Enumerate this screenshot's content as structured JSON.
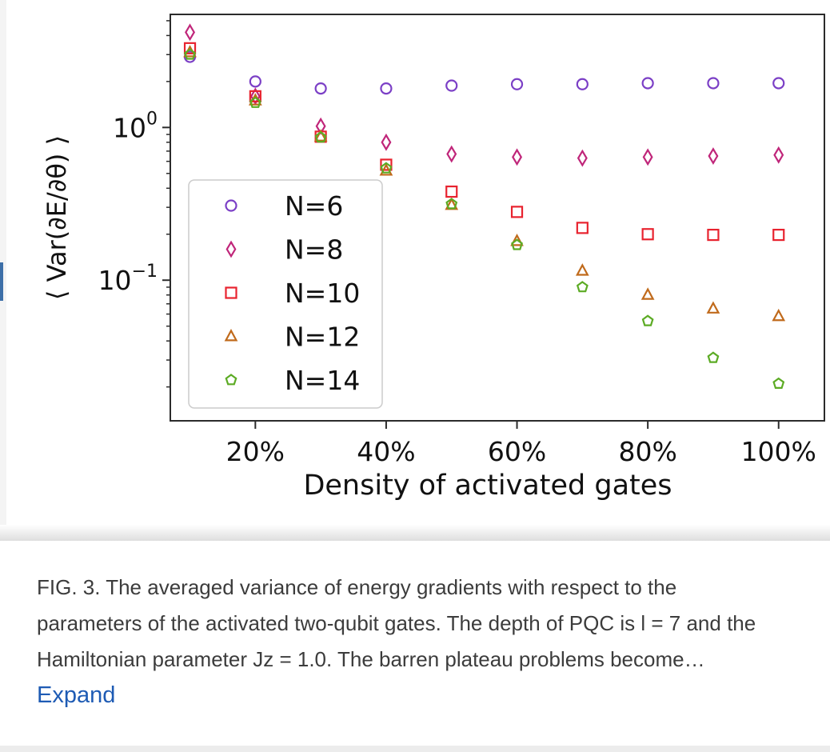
{
  "caption": {
    "text": "FIG. 3. The averaged variance of energy gradients with respect to the parameters of the activated two-qubit gates. The depth of PQC is l = 7 and the Hamiltonian parameter Jz = 1.0. The barren plateau problems become…",
    "expand_label": "Expand",
    "link_color": "#1e5bb4"
  },
  "chart_data": {
    "type": "scatter",
    "xlabel": "Density of activated gates",
    "ylabel": "⟨ Var(∂E/∂θ) ⟩",
    "x_ticks": [
      "20%",
      "40%",
      "60%",
      "80%",
      "100%"
    ],
    "x_tick_values": [
      20,
      40,
      60,
      80,
      100
    ],
    "y_ticks": [
      {
        "value": 1,
        "base": "10",
        "exp": "0"
      },
      {
        "value": 0.1,
        "base": "10",
        "exp": "−1"
      }
    ],
    "y_scale": "log",
    "xlim": [
      7,
      107
    ],
    "ylim": [
      0.012,
      5.5
    ],
    "grid": false,
    "legend_position": "center-left",
    "x": [
      10,
      20,
      30,
      40,
      50,
      60,
      70,
      80,
      90,
      100
    ],
    "series": [
      {
        "name": "N=6",
        "marker": "circle",
        "color": "#7b3fc6",
        "values": [
          2.9,
          2.0,
          1.8,
          1.8,
          1.88,
          1.92,
          1.92,
          1.95,
          1.95,
          1.95
        ]
      },
      {
        "name": "N=8",
        "marker": "diamond",
        "color": "#c0267a",
        "values": [
          4.2,
          1.6,
          1.02,
          0.8,
          0.67,
          0.64,
          0.63,
          0.64,
          0.65,
          0.66
        ]
      },
      {
        "name": "N=10",
        "marker": "square",
        "color": "#e8232f",
        "values": [
          3.3,
          1.6,
          0.87,
          0.57,
          0.38,
          0.28,
          0.22,
          0.2,
          0.198,
          0.198
        ]
      },
      {
        "name": "N=12",
        "marker": "triangle",
        "color": "#c06a1b",
        "values": [
          3.1,
          1.5,
          0.87,
          0.52,
          0.31,
          0.18,
          0.115,
          0.08,
          0.065,
          0.058
        ]
      },
      {
        "name": "N=14",
        "marker": "pentagon",
        "color": "#5cab24",
        "values": [
          3.0,
          1.45,
          0.86,
          0.54,
          0.315,
          0.17,
          0.09,
          0.054,
          0.031,
          0.021
        ]
      }
    ]
  }
}
